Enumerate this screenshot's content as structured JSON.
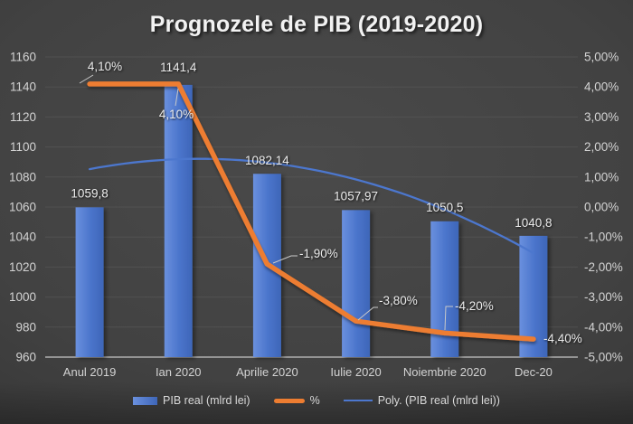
{
  "title": "Prognozele de PIB (2019-2020)",
  "colors": {
    "background_center": "#4a4a4a",
    "background_edge": "#282828",
    "bar_fill_light": "#6A90DE",
    "bar_fill": "#4A74CB",
    "bar_fill_dark": "#3E66B8",
    "percent_line": "#ED7D31",
    "trendline": "#4C77CE",
    "gridline": "#5C5C5C",
    "axis_line": "#A0A0A0",
    "leader_line": "#C9C9C9",
    "tick_text": "#D3D3D3",
    "data_label_text": "#ECECEC",
    "title_text": "#F2F2F2",
    "legend_text": "#D9D9D9"
  },
  "chart_data": {
    "type": "bar",
    "subtype": "combo-bar-line-with-trendline",
    "title": "Prognozele de PIB (2019-2020)",
    "categories": [
      "Anul 2019",
      "Ian 2020",
      "Aprilie 2020",
      "Iulie 2020",
      "Noiembrie 2020",
      "Dec-20"
    ],
    "series": [
      {
        "name": "PIB real (mlrd lei)",
        "kind": "bar",
        "axis": "left",
        "color": "#4A74CB",
        "values": [
          1059.8,
          1141.4,
          1082.14,
          1057.97,
          1050.5,
          1040.8
        ],
        "labels": [
          "1059,8",
          "1141,4",
          "1082,14",
          "1057,97",
          "1050,5",
          "1040,8"
        ]
      },
      {
        "name": "%",
        "kind": "line",
        "axis": "right",
        "color": "#ED7D31",
        "values": [
          4.1,
          4.1,
          -1.9,
          -3.8,
          -4.2,
          -4.4
        ],
        "labels": [
          "4,10%",
          "4,10%",
          "-1,90%",
          "-3,80%",
          "-4,20%",
          "-4,40%"
        ]
      },
      {
        "name": "Poly. (PIB real (mlrd lei))",
        "kind": "polynomial-trendline",
        "of_series": "PIB real (mlrd lei)",
        "axis": "left",
        "color": "#4C77CE"
      }
    ],
    "left_axis": {
      "min": 960,
      "max": 1160,
      "step": 20,
      "tick_labels": [
        "1160",
        "1140",
        "1120",
        "1100",
        "1080",
        "1060",
        "1040",
        "1020",
        "1000",
        "980",
        "960"
      ]
    },
    "right_axis": {
      "min": -5,
      "max": 5,
      "step": 1,
      "tick_labels": [
        "5,00%",
        "4,00%",
        "3,00%",
        "2,00%",
        "1,00%",
        "0,00%",
        "-1,00%",
        "-2,00%",
        "-3,00%",
        "-4,00%",
        "-5,00%"
      ]
    },
    "grid": true,
    "legend_position": "bottom"
  }
}
